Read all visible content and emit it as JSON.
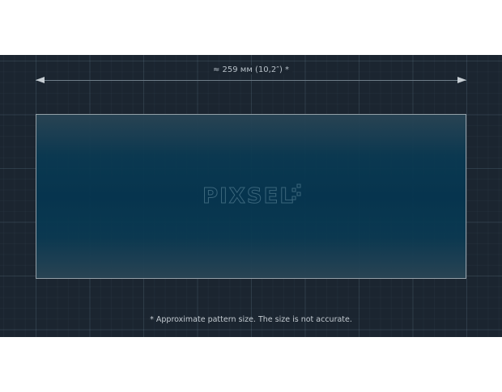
{
  "dimension_label": "≈ 259 мм (10,2″) *",
  "logo_text": "PIXSEL",
  "note": "* Approximate pattern size. The size is not accurate.",
  "colors": {
    "background": "#1b2530",
    "pattern": "#053550",
    "text": "#c3cad0"
  }
}
